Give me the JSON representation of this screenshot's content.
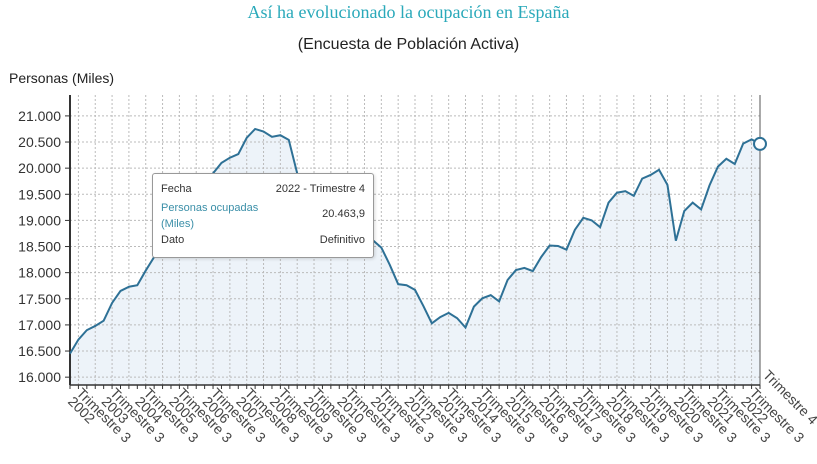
{
  "chart_data": {
    "type": "area",
    "title": "Así ha evolucionado la ocupación en España",
    "subtitle": "(Encuesta de Población Activa)",
    "ylabel": "Personas (Miles)",
    "ylim": [
      15850,
      21400
    ],
    "yticks": [
      16000,
      16500,
      17000,
      17500,
      18000,
      18500,
      19000,
      19500,
      20000,
      20500,
      21000
    ],
    "ytick_labels": [
      "16.000",
      "16.500",
      "17.000",
      "17.500",
      "18.000",
      "18.500",
      "19.000",
      "19.500",
      "20.000",
      "20.500",
      "21.000"
    ],
    "grid": true,
    "x_start": "2002 - Trimestre 2",
    "x_end": "2022 - Trimestre 4",
    "xtick_labels": [
      {
        "year": "2002",
        "q": "Trimestre 3"
      },
      {
        "year": "2003",
        "q": "Trimestre 3"
      },
      {
        "year": "2004",
        "q": "Trimestre 3"
      },
      {
        "year": "2005",
        "q": "Trimestre 3"
      },
      {
        "year": "2006",
        "q": "Trimestre 3"
      },
      {
        "year": "2007",
        "q": "Trimestre 3"
      },
      {
        "year": "2008",
        "q": "Trimestre 3"
      },
      {
        "year": "2009",
        "q": "Trimestre 3"
      },
      {
        "year": "2010",
        "q": "Trimestre 3"
      },
      {
        "year": "2011",
        "q": "Trimestre 3"
      },
      {
        "year": "2012",
        "q": "Trimestre 3"
      },
      {
        "year": "2013",
        "q": "Trimestre 3"
      },
      {
        "year": "2014",
        "q": "Trimestre 3"
      },
      {
        "year": "2015",
        "q": "Trimestre 3"
      },
      {
        "year": "2016",
        "q": "Trimestre 3"
      },
      {
        "year": "2017",
        "q": "Trimestre 3"
      },
      {
        "year": "2018",
        "q": "Trimestre 3"
      },
      {
        "year": "2019",
        "q": "Trimestre 3"
      },
      {
        "year": "2020",
        "q": "Trimestre 3"
      },
      {
        "year": "2021",
        "q": "Trimestre 3"
      },
      {
        "year": "2022",
        "q": "Trimestre 3"
      },
      {
        "year": "",
        "q": "Trimestre 4"
      }
    ],
    "series": [
      {
        "values": [
          16450,
          16720,
          16900,
          16980,
          17080,
          17420,
          17650,
          17730,
          17760,
          18040,
          18300,
          18600,
          18900,
          19100,
          19300,
          19500,
          19650,
          19900,
          20100,
          20200,
          20270,
          20580,
          20750,
          20700,
          20600,
          20630,
          20540,
          19900,
          19250,
          19100,
          18990,
          18800,
          18700,
          18640,
          18610,
          18500,
          18620,
          18480,
          18150,
          17780,
          17760,
          17670,
          17360,
          17030,
          17150,
          17230,
          17130,
          16950,
          17350,
          17510,
          17570,
          17450,
          17860,
          18050,
          18090,
          18030,
          18300,
          18520,
          18510,
          18440,
          18820,
          19050,
          19000,
          18870,
          19340,
          19530,
          19560,
          19470,
          19800,
          19870,
          19970,
          19680,
          18610,
          19180,
          19340,
          19210,
          19670,
          20030,
          20180,
          20080,
          20470,
          20550,
          20463.9
        ]
      }
    ],
    "colors": {
      "line": "#2e7196",
      "fill": "#e8f0f7",
      "title": "#2aa9ba"
    }
  },
  "tooltip": {
    "fecha_label": "Fecha",
    "fecha_value": "2022 - Trimestre 4",
    "series_label": "Personas ocupadas (Miles)",
    "series_value": "20.463,9",
    "dato_label": "Dato",
    "dato_value": "Definitivo"
  }
}
